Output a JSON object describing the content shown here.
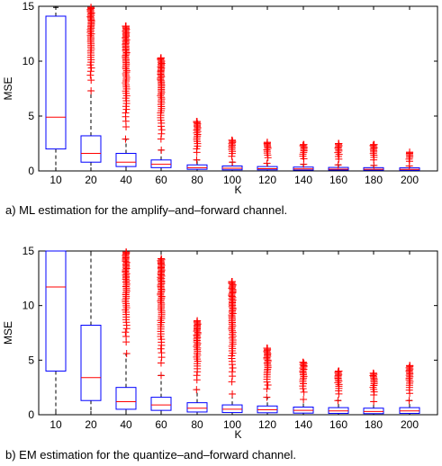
{
  "chart_data": [
    {
      "type": "boxplot",
      "caption": "a) ML estimation for the amplify–and–forward channel.",
      "xlabel": "K",
      "ylabel": "MSE",
      "ylim": [
        0,
        15
      ],
      "yticks": [
        0,
        5,
        10,
        15
      ],
      "categories": [
        "10",
        "20",
        "40",
        "60",
        "80",
        "100",
        "120",
        "140",
        "160",
        "180",
        "200"
      ],
      "box_color": "#0000ff",
      "median_color": "#ff0000",
      "outlier_color": "#ff0000",
      "boxes": [
        {
          "min": 0.0,
          "q1": 2.0,
          "median": 4.9,
          "q3": 14.1,
          "max": 14.9,
          "outlier_min": null,
          "outlier_max": null
        },
        {
          "min": 0.0,
          "q1": 0.8,
          "median": 1.6,
          "q3": 3.2,
          "max": 7.3,
          "outlier_min": 7.3,
          "outlier_max": 14.9
        },
        {
          "min": 0.0,
          "q1": 0.4,
          "median": 0.8,
          "q3": 1.6,
          "max": 2.9,
          "outlier_min": 2.9,
          "outlier_max": 13.2
        },
        {
          "min": 0.0,
          "q1": 0.3,
          "median": 0.6,
          "q3": 1.0,
          "max": 1.9,
          "outlier_min": 1.9,
          "outlier_max": 10.3
        },
        {
          "min": 0.0,
          "q1": 0.15,
          "median": 0.3,
          "q3": 0.55,
          "max": 1.0,
          "outlier_min": 1.0,
          "outlier_max": 4.5
        },
        {
          "min": 0.0,
          "q1": 0.1,
          "median": 0.25,
          "q3": 0.45,
          "max": 0.8,
          "outlier_min": 0.8,
          "outlier_max": 2.8
        },
        {
          "min": 0.0,
          "q1": 0.1,
          "median": 0.2,
          "q3": 0.4,
          "max": 0.7,
          "outlier_min": 0.7,
          "outlier_max": 2.6
        },
        {
          "min": 0.0,
          "q1": 0.08,
          "median": 0.18,
          "q3": 0.35,
          "max": 0.6,
          "outlier_min": 0.6,
          "outlier_max": 2.4
        },
        {
          "min": 0.0,
          "q1": 0.08,
          "median": 0.16,
          "q3": 0.32,
          "max": 0.55,
          "outlier_min": 0.55,
          "outlier_max": 2.5
        },
        {
          "min": 0.0,
          "q1": 0.07,
          "median": 0.15,
          "q3": 0.3,
          "max": 0.5,
          "outlier_min": 0.5,
          "outlier_max": 2.4
        },
        {
          "min": 0.0,
          "q1": 0.06,
          "median": 0.14,
          "q3": 0.28,
          "max": 0.45,
          "outlier_min": 0.45,
          "outlier_max": 1.7
        }
      ]
    },
    {
      "type": "boxplot",
      "caption": "b) EM estimation for the quantize–and–forward channel.",
      "xlabel": "K",
      "ylabel": "MSE",
      "ylim": [
        0,
        15
      ],
      "yticks": [
        0,
        5,
        10,
        15
      ],
      "categories": [
        "10",
        "20",
        "40",
        "60",
        "80",
        "100",
        "120",
        "140",
        "160",
        "180",
        "200"
      ],
      "box_color": "#0000ff",
      "median_color": "#ff0000",
      "outlier_color": "#ff0000",
      "boxes": [
        {
          "min": 0.0,
          "q1": 4.0,
          "median": 11.7,
          "q3": 15.0,
          "max": 15.0,
          "outlier_min": null,
          "outlier_max": null
        },
        {
          "min": 0.0,
          "q1": 1.3,
          "median": 3.4,
          "q3": 8.2,
          "max": 15.0,
          "outlier_min": null,
          "outlier_max": null
        },
        {
          "min": 0.0,
          "q1": 0.5,
          "median": 1.2,
          "q3": 2.5,
          "max": 5.6,
          "outlier_min": 5.6,
          "outlier_max": 14.9
        },
        {
          "min": 0.0,
          "q1": 0.4,
          "median": 0.9,
          "q3": 1.6,
          "max": 3.6,
          "outlier_min": 3.6,
          "outlier_max": 14.3
        },
        {
          "min": 0.0,
          "q1": 0.25,
          "median": 0.6,
          "q3": 1.1,
          "max": 2.3,
          "outlier_min": 2.3,
          "outlier_max": 8.6
        },
        {
          "min": 0.0,
          "q1": 0.2,
          "median": 0.5,
          "q3": 0.9,
          "max": 1.9,
          "outlier_min": 1.9,
          "outlier_max": 12.2
        },
        {
          "min": 0.0,
          "q1": 0.18,
          "median": 0.45,
          "q3": 0.8,
          "max": 1.6,
          "outlier_min": 1.6,
          "outlier_max": 6.1
        },
        {
          "min": 0.0,
          "q1": 0.15,
          "median": 0.4,
          "q3": 0.7,
          "max": 1.4,
          "outlier_min": 1.4,
          "outlier_max": 4.8
        },
        {
          "min": 0.0,
          "q1": 0.12,
          "median": 0.35,
          "q3": 0.65,
          "max": 1.3,
          "outlier_min": 1.3,
          "outlier_max": 4.0
        },
        {
          "min": 0.0,
          "q1": 0.1,
          "median": 0.3,
          "q3": 0.6,
          "max": 1.2,
          "outlier_min": 1.2,
          "outlier_max": 3.8
        },
        {
          "min": 0.0,
          "q1": 0.12,
          "median": 0.35,
          "q3": 0.65,
          "max": 1.3,
          "outlier_min": 1.3,
          "outlier_max": 4.5
        }
      ]
    }
  ]
}
